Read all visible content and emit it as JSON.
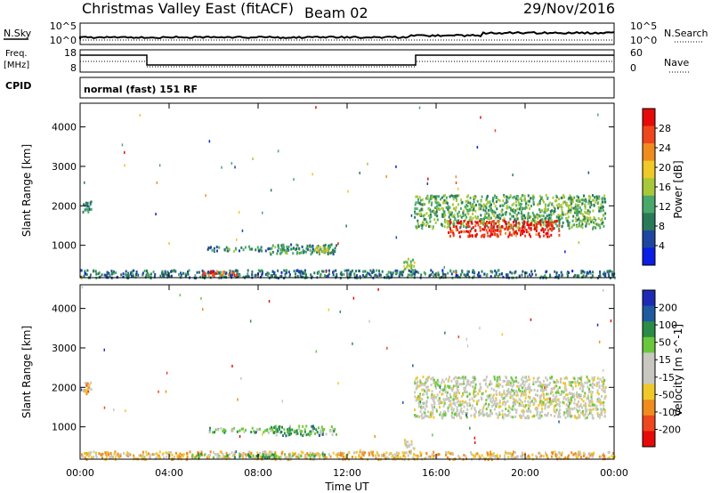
{
  "header": {
    "station": "Christmas Valley East (fitACF)",
    "beam": "Beam 02",
    "date": "29/Nov/2016"
  },
  "noise_panel": {
    "left_label": "N.Sky",
    "right_label": "N.Search",
    "left_ticks": [
      "10^5",
      "10^0"
    ],
    "right_ticks": [
      "10^5",
      "10^0"
    ]
  },
  "freq_panel": {
    "left_label_line1": "Freq.",
    "left_label_line2": "[MHz]",
    "right_label": "Nave",
    "left_ticks": [
      "18",
      "8"
    ],
    "right_ticks": [
      "60",
      "0"
    ]
  },
  "cpid_panel": {
    "label": "CPID",
    "program": "normal (fast) 151 RF"
  },
  "colors": {
    "power_scale": [
      "#0a1ee6",
      "#1e46a0",
      "#2a7a5a",
      "#4aa86a",
      "#a8c83c",
      "#f0c828",
      "#f08c1e",
      "#f0461e",
      "#e60a0a"
    ],
    "velocity_scale": [
      "#e60a0a",
      "#f0461e",
      "#f08c1e",
      "#f0c828",
      "#c8c8c0",
      "#c8c8c0",
      "#6ac83c",
      "#2a8c46",
      "#1e5aa0",
      "#1e2ab4"
    ]
  },
  "chart_data": [
    {
      "type": "heatmap",
      "name": "power",
      "ylabel": "Slant Range [km]",
      "xlim": [
        0,
        24
      ],
      "ylim": [
        180,
        4600
      ],
      "yticks": [
        "1000",
        "2000",
        "3000",
        "4000"
      ],
      "colorbar": {
        "label": "Power [dB]",
        "ticks": [
          "4",
          "8",
          "12",
          "16",
          "20",
          "24",
          "28"
        ],
        "range": [
          0,
          32
        ]
      },
      "regions": [
        {
          "t0": 0.1,
          "t1": 0.5,
          "r0": 1850,
          "r1": 2150,
          "level": 0.3
        },
        {
          "t0": 5.7,
          "t1": 9.5,
          "r0": 880,
          "r1": 1000,
          "level": 0.3
        },
        {
          "t0": 8.5,
          "t1": 11.5,
          "r0": 800,
          "r1": 1050,
          "level": 0.35
        },
        {
          "t0": 10.5,
          "t1": 11.2,
          "r0": 850,
          "r1": 1000,
          "level": 0.55
        },
        {
          "t0": 14.5,
          "t1": 15.0,
          "r0": 350,
          "r1": 700,
          "level": 0.5
        },
        {
          "t0": 15.0,
          "t1": 23.6,
          "r0": 1450,
          "r1": 2300,
          "level": 0.4
        },
        {
          "t0": 16.5,
          "t1": 21.5,
          "r0": 1250,
          "r1": 1650,
          "level": 0.9
        },
        {
          "t0": 0.0,
          "t1": 24.0,
          "r0": 200,
          "r1": 400,
          "level": 0.25
        },
        {
          "t0": 5.5,
          "t1": 7.0,
          "r0": 250,
          "r1": 380,
          "level": 0.8
        }
      ]
    },
    {
      "type": "heatmap",
      "name": "velocity",
      "ylabel": "Slant Range [km]",
      "xlabel": "Time UT",
      "xlim": [
        0,
        24
      ],
      "ylim": [
        180,
        4600
      ],
      "xticks": [
        "00:00",
        "04:00",
        "08:00",
        "12:00",
        "16:00",
        "20:00",
        "00:00"
      ],
      "yticks": [
        "1000",
        "2000",
        "3000",
        "4000"
      ],
      "colorbar": {
        "label": "Velocity [m s^-1]",
        "ticks": [
          "200",
          "100",
          "50",
          "15",
          "-15",
          "-50",
          "-100",
          "-200"
        ],
        "range": [
          -250,
          250
        ]
      },
      "regions": [
        {
          "t0": 0.1,
          "t1": 0.5,
          "r0": 1850,
          "r1": 2150,
          "level": 0.3
        },
        {
          "t0": 5.7,
          "t1": 9.5,
          "r0": 880,
          "r1": 1000,
          "level": 0.68
        },
        {
          "t0": 8.5,
          "t1": 11.5,
          "r0": 800,
          "r1": 1050,
          "level": 0.68
        },
        {
          "t0": 14.5,
          "t1": 15.0,
          "r0": 350,
          "r1": 700,
          "level": 0.5
        },
        {
          "t0": 15.0,
          "t1": 23.6,
          "r0": 1250,
          "r1": 2300,
          "level": 0.5
        },
        {
          "t0": 0.0,
          "t1": 24.0,
          "r0": 200,
          "r1": 400,
          "level": 0.35
        },
        {
          "t0": 5.0,
          "t1": 11.0,
          "r0": 250,
          "r1": 350,
          "level": 0.65
        }
      ]
    }
  ]
}
